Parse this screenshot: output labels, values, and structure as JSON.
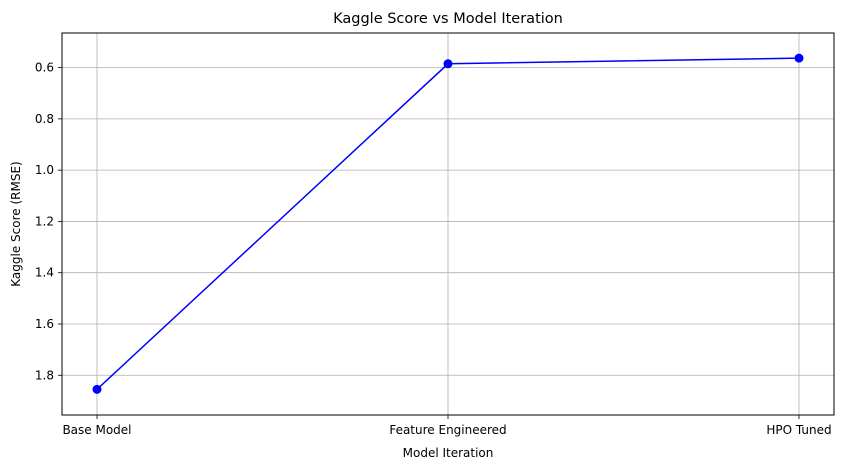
{
  "chart_data": {
    "type": "line",
    "title": "Kaggle Score vs Model Iteration",
    "xlabel": "Model Iteration",
    "ylabel": "Kaggle Score (RMSE)",
    "categories": [
      "Base Model",
      "Feature Engineered",
      "HPO Tuned"
    ],
    "series": [
      {
        "values": [
          1.855,
          0.585,
          0.563
        ],
        "color": "#0000ff",
        "marker": "circle"
      }
    ],
    "y_axis": {
      "inverted": true,
      "range": [
        0.465,
        1.955
      ],
      "ticks": [
        "0.6",
        "0.8",
        "1.0",
        "1.2",
        "1.4",
        "1.6",
        "1.8"
      ],
      "tick_values": [
        0.6,
        0.8,
        1.0,
        1.2,
        1.4,
        1.6,
        1.8
      ]
    },
    "grid": true,
    "axes_color": "#000000",
    "grid_color": "#b0b0b0"
  }
}
